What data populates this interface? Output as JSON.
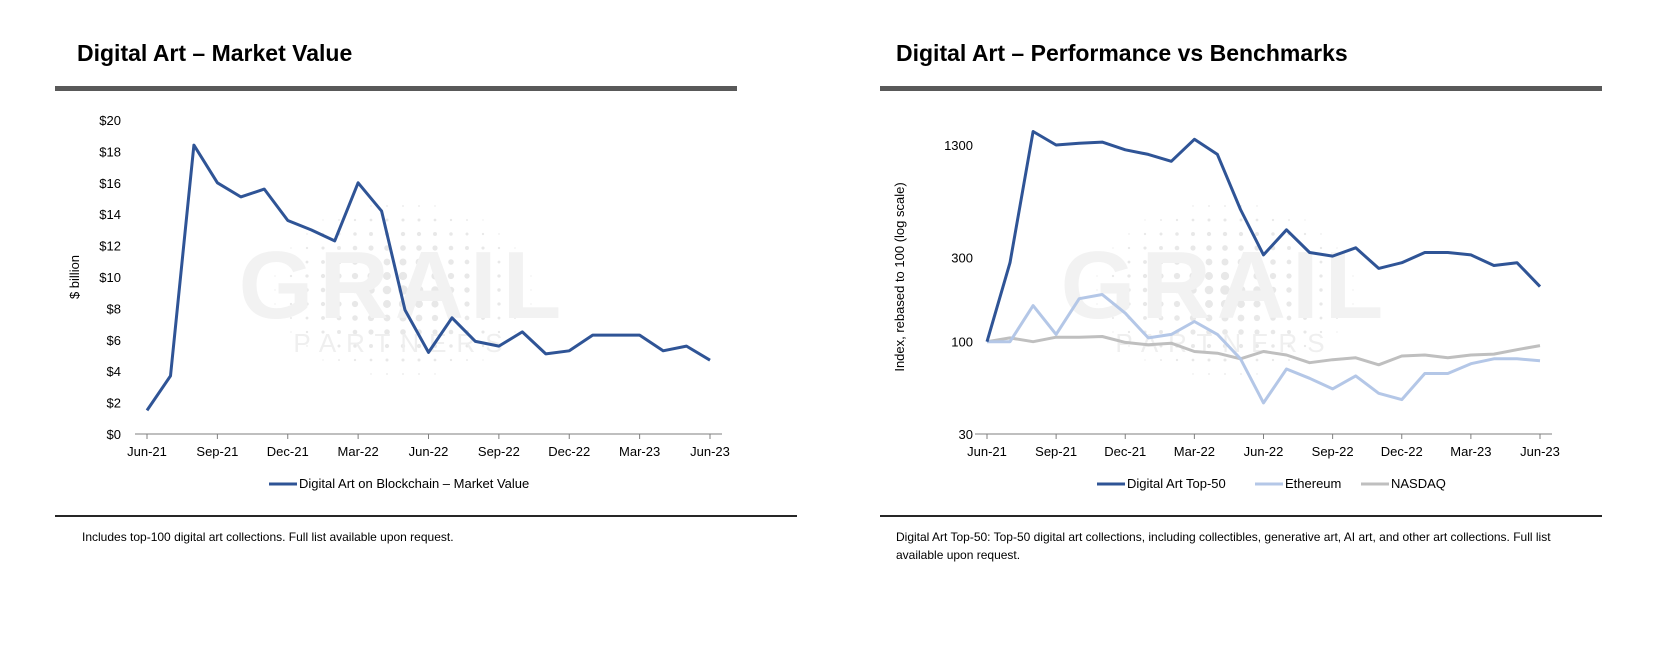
{
  "left_panel": {
    "title": "Digital Art – Market Value",
    "note": "Includes top-100 digital art collections. Full list available upon request."
  },
  "right_panel": {
    "title": "Digital Art – Performance vs Benchmarks",
    "note": "Digital Art Top-50: Top-50 digital art collections, including collectibles, generative art, AI art, and other art collections. Full list available upon request."
  },
  "watermark": {
    "text": "GRAIL",
    "subtext": "PARTNERS"
  },
  "colors": {
    "dark_blue": "#2f5496",
    "light_blue": "#b4c7e7",
    "gray": "#bfbfbf",
    "axis": "#7f7f7f"
  },
  "chart_data": [
    {
      "type": "line",
      "title": "Digital Art – Market Value",
      "ylabel": "$ billion",
      "xlabel": "",
      "x": [
        "Jun-21",
        "Jul-21",
        "Aug-21",
        "Sep-21",
        "Oct-21",
        "Nov-21",
        "Dec-21",
        "Jan-22",
        "Feb-22",
        "Mar-22",
        "Apr-22",
        "May-22",
        "Jun-22",
        "Jul-22",
        "Aug-22",
        "Sep-22",
        "Oct-22",
        "Nov-22",
        "Dec-22",
        "Jan-23",
        "Feb-23",
        "Mar-23",
        "Apr-23",
        "May-23",
        "Jun-23"
      ],
      "xticks": [
        "Jun-21",
        "Sep-21",
        "Dec-21",
        "Mar-22",
        "Jun-22",
        "Sep-22",
        "Dec-22",
        "Mar-23",
        "Jun-23"
      ],
      "yticks": [
        "$0",
        "$2",
        "$4",
        "$6",
        "$8",
        "$10",
        "$12",
        "$14",
        "$16",
        "$18",
        "$20"
      ],
      "ylim": [
        0,
        20
      ],
      "series": [
        {
          "name": "Digital Art on Blockchain – Market Value",
          "values": [
            1.5,
            3.7,
            18.4,
            16.0,
            15.1,
            15.6,
            13.6,
            13.0,
            12.3,
            16.0,
            14.2,
            7.9,
            5.2,
            7.4,
            5.9,
            5.6,
            6.5,
            5.1,
            5.3,
            6.3,
            6.3,
            6.3,
            5.3,
            5.6,
            4.7
          ]
        }
      ],
      "legend": "bottom",
      "grid": false
    },
    {
      "type": "line",
      "title": "Digital Art – Performance vs Benchmarks",
      "ylabel": "Index, rebased to 100 (log scale)",
      "xlabel": "",
      "yscale": "log",
      "x": [
        "Jun-21",
        "Jul-21",
        "Aug-21",
        "Sep-21",
        "Oct-21",
        "Nov-21",
        "Dec-21",
        "Jan-22",
        "Feb-22",
        "Mar-22",
        "Apr-22",
        "May-22",
        "Jun-22",
        "Jul-22",
        "Aug-22",
        "Sep-22",
        "Oct-22",
        "Nov-22",
        "Dec-22",
        "Jan-23",
        "Feb-23",
        "Mar-23",
        "Apr-23",
        "May-23",
        "Jun-23"
      ],
      "xticks": [
        "Jun-21",
        "Sep-21",
        "Dec-21",
        "Mar-22",
        "Jun-22",
        "Sep-22",
        "Dec-22",
        "Mar-23",
        "Jun-23"
      ],
      "yticks": [
        30,
        100,
        300,
        1300
      ],
      "ylim": [
        30,
        1800
      ],
      "series": [
        {
          "name": "Digital Art Top-50",
          "values": [
            100,
            280,
            1550,
            1300,
            1330,
            1350,
            1220,
            1150,
            1050,
            1400,
            1150,
            560,
            310,
            430,
            320,
            305,
            340,
            260,
            280,
            320,
            320,
            310,
            270,
            280,
            205
          ]
        },
        {
          "name": "Ethereum",
          "values": [
            100,
            100,
            160,
            110,
            175,
            185,
            145,
            105,
            110,
            130,
            110,
            80,
            45,
            70,
            62,
            54,
            64,
            51,
            47,
            66,
            66,
            75,
            80,
            80,
            78
          ]
        },
        {
          "name": "NASDAQ",
          "values": [
            100,
            105,
            100,
            106,
            106,
            107,
            99,
            96,
            98,
            88,
            86,
            80,
            88,
            84,
            76,
            79,
            81,
            74,
            83,
            84,
            81,
            84,
            85,
            90,
            95
          ]
        }
      ],
      "legend": "bottom",
      "grid": false
    }
  ]
}
